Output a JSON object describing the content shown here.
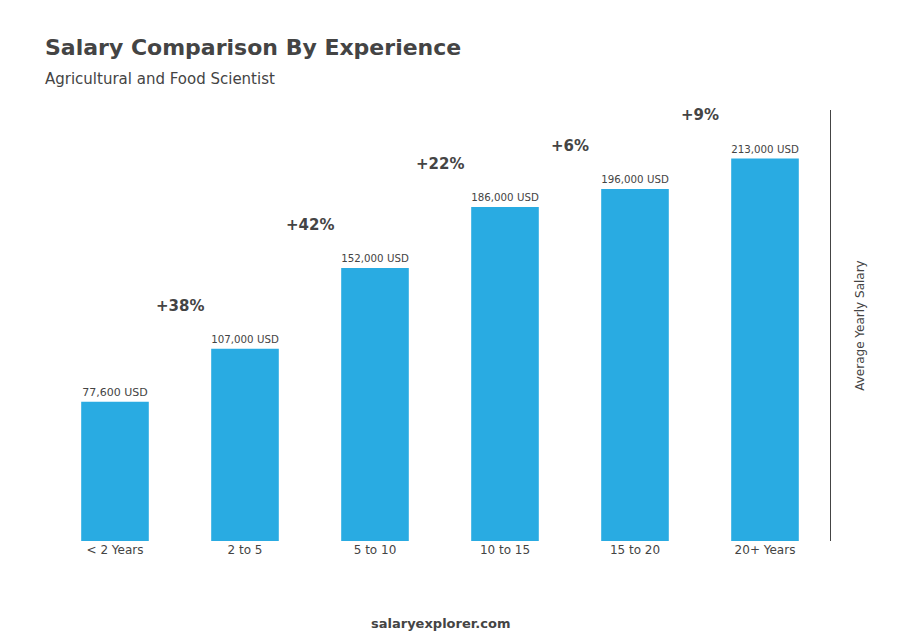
{
  "chart_data": {
    "type": "bar",
    "title": "Salary Comparison By Experience",
    "subtitle": "Agricultural and Food Scientist",
    "ylabel": "Average Yearly Salary",
    "categories": [
      "< 2 Years",
      "2 to 5",
      "5 to 10",
      "10 to 15",
      "15 to 20",
      "20+ Years"
    ],
    "values": [
      77600,
      107000,
      152000,
      186000,
      196000,
      213000
    ],
    "value_labels": [
      "77,600 USD",
      "107,000 USD",
      "152,000 USD",
      "186,000 USD",
      "196,000 USD",
      "213,000 USD"
    ],
    "data_labels": true,
    "color": "#29ABE2",
    "ylim": [
      0,
      240000
    ],
    "yticks": [],
    "grid": false,
    "tick_labels": "x",
    "pct_changes": [
      "+38%",
      "+42%",
      "+22%",
      "+6%",
      "+9%"
    ],
    "footer": [
      "salary",
      "explorer.com"
    ]
  }
}
